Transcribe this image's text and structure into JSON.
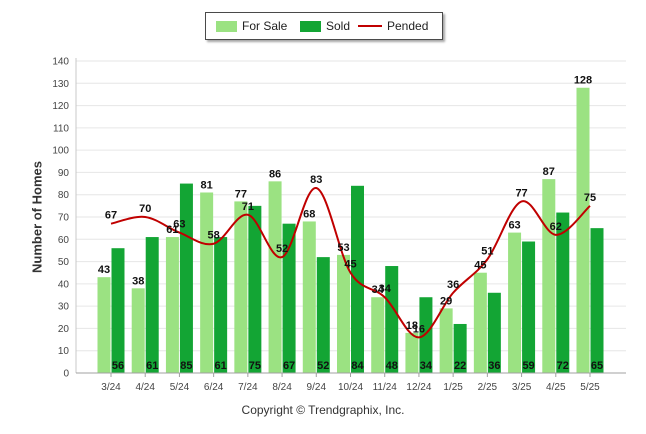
{
  "chart_data": {
    "type": "bar",
    "categories": [
      "3/24",
      "4/24",
      "5/24",
      "6/24",
      "7/24",
      "8/24",
      "9/24",
      "10/24",
      "11/24",
      "12/24",
      "1/25",
      "2/25",
      "3/25",
      "4/25",
      "5/25"
    ],
    "series": [
      {
        "name": "For Sale",
        "type": "bar",
        "color": "#9be282",
        "values": [
          43,
          38,
          61,
          81,
          77,
          86,
          68,
          53,
          34,
          18,
          29,
          45,
          63,
          87,
          128
        ]
      },
      {
        "name": "Sold",
        "type": "bar",
        "color": "#13a534",
        "values": [
          56,
          61,
          85,
          61,
          75,
          67,
          52,
          84,
          48,
          34,
          22,
          36,
          59,
          72,
          65
        ]
      },
      {
        "name": "Pended",
        "type": "line",
        "color": "#c00000",
        "values": [
          67,
          70,
          63,
          58,
          71,
          52,
          83,
          45,
          34,
          16,
          36,
          51,
          77,
          62,
          75
        ]
      }
    ],
    "ylabel": "Number of Homes",
    "ylim": [
      0,
      140
    ],
    "yticks": [
      0,
      10,
      20,
      30,
      40,
      50,
      60,
      70,
      80,
      90,
      100,
      110,
      120,
      130,
      140
    ],
    "grid": true,
    "legend_position": "top-center"
  },
  "legend": {
    "for_sale": "For Sale",
    "sold": "Sold",
    "pended": "Pended"
  },
  "footer": "Copyright © Trendgraphix, Inc."
}
